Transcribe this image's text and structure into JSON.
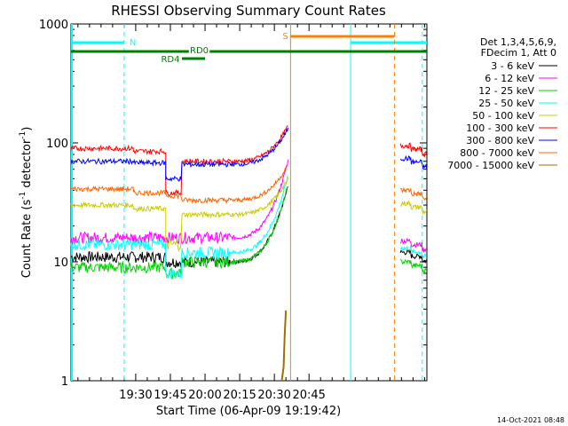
{
  "chart_data": {
    "type": "line",
    "title": "RHESSI Observing Summary Count Rates",
    "xlabel": "Start Time (06-Apr-09 19:19:42)",
    "ylabel_main": "Count Rate (s",
    "ylabel_sup1": "-1",
    "ylabel_mid": " detector",
    "ylabel_sup2": "-1",
    "ylabel_end": ")",
    "yscale": "log",
    "ylim": [
      1,
      1000
    ],
    "xlim_minutes": [
      -28,
      126
    ],
    "x_ticks": [
      {
        "label": "19:30",
        "min": 0
      },
      {
        "label": "19:45",
        "min": 15
      },
      {
        "label": "20:00",
        "min": 30
      },
      {
        "label": "20:15",
        "min": 45
      },
      {
        "label": "20:30",
        "min": 60
      },
      {
        "label": "20:45",
        "min": 75
      }
    ],
    "y_ticks": [
      {
        "label": "1",
        "v": 1
      },
      {
        "label": "10",
        "v": 10
      },
      {
        "label": "100",
        "v": 100
      },
      {
        "label": "1000",
        "v": 1000
      }
    ],
    "legend_header": [
      "Det 1,3,4,5,6,9,",
      "FDecim 1, Att 0"
    ],
    "series": [
      {
        "name": "3 - 6 keV",
        "color": "#000000",
        "pre": [
          11,
          11,
          10,
          10
        ],
        "post": 12
      },
      {
        "name": "6 - 12 keV",
        "color": "#ff00ff",
        "pre": [
          16,
          16,
          16,
          16
        ],
        "post": 15
      },
      {
        "name": "12 - 25 keV",
        "color": "#00d400",
        "pre": [
          9,
          9,
          8,
          10
        ],
        "post": 10
      },
      {
        "name": "25 - 50 keV",
        "color": "#00ffff",
        "pre": [
          14,
          14,
          8,
          12
        ],
        "post": 13
      },
      {
        "name": "50 - 100 keV",
        "color": "#cccc00",
        "pre": [
          30,
          28,
          14,
          25
        ],
        "post": 31
      },
      {
        "name": "100 - 300 keV",
        "color": "#ff0000",
        "pre": [
          90,
          85,
          38,
          70
        ],
        "post": 95
      },
      {
        "name": "300 - 800 keV",
        "color": "#0000ff",
        "pre": [
          70,
          68,
          50,
          66
        ],
        "post": 74
      },
      {
        "name": "800 - 7000 keV",
        "color": "#ff6600",
        "pre": [
          41,
          38,
          36,
          33
        ],
        "post": 40
      },
      {
        "name": "7000 - 15000 keV",
        "color": "#a07000",
        "pre": [],
        "post": 0
      }
    ],
    "annotations": {
      "n_label": "N",
      "s_label": "S",
      "rd0_label": "RD0",
      "rd4_label": "RD4"
    },
    "colors": {
      "cyan": "#00ffff",
      "orange": "#ff8000",
      "green": "#008000"
    }
  },
  "footer": {
    "timestamp": "14-Oct-2021 08:48"
  }
}
